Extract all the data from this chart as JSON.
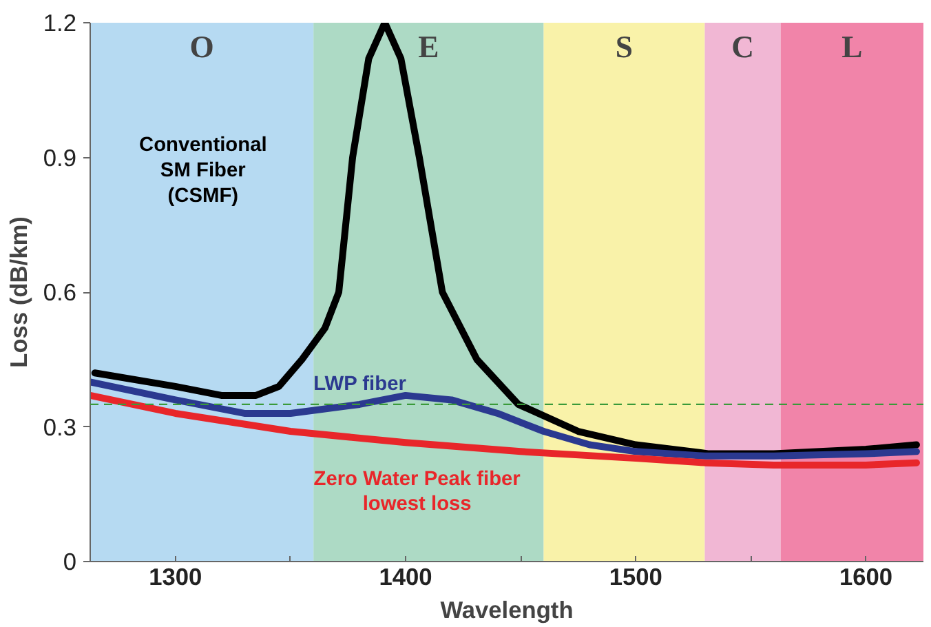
{
  "chart_data": {
    "type": "line",
    "xlabel": "Wavelength",
    "ylabel": "Loss (dB/km)",
    "xlim": [
      1263,
      1625
    ],
    "ylim": [
      0,
      1.2
    ],
    "xticks": [
      1300,
      {
        "value": 1350,
        "label": null
      },
      1400,
      {
        "value": 1450,
        "label": null
      },
      1500,
      {
        "value": 1550,
        "label": null
      },
      1600
    ],
    "yticks": [
      0,
      0.3,
      0.6,
      0.9,
      1.2
    ],
    "grid": false,
    "marker": "none",
    "line_style": "solid",
    "bands": [
      {
        "axis": "x",
        "from": 1263,
        "to": 1360,
        "label": "O",
        "color": "#a9d3f0"
      },
      {
        "axis": "x",
        "from": 1360,
        "to": 1460,
        "label": "E",
        "color": "#9fd4bb"
      },
      {
        "axis": "x",
        "from": 1460,
        "to": 1530,
        "label": "S",
        "color": "#f8f09a"
      },
      {
        "axis": "x",
        "from": 1530,
        "to": 1563,
        "label": "C",
        "color": "#eeaacc"
      },
      {
        "axis": "x",
        "from": 1563,
        "to": 1625,
        "label": "L",
        "color": "#ee6f9a"
      }
    ],
    "ref_lines": [
      {
        "axis": "y",
        "value": 0.35,
        "label": null,
        "color": "#3a9a3a",
        "line_style": "dashed"
      }
    ],
    "series": [
      {
        "name": "Conventional\nSM Fiber\n(CSMF)",
        "color": "#000000",
        "x": [
          1265,
          1300,
          1320,
          1335,
          1345,
          1355,
          1365,
          1371,
          1377,
          1384,
          1391,
          1398,
          1406,
          1416,
          1431,
          1449,
          1475,
          1500,
          1532,
          1560,
          1600,
          1622
        ],
        "values": [
          0.42,
          0.39,
          0.37,
          0.37,
          0.39,
          0.45,
          0.52,
          0.6,
          0.9,
          1.12,
          1.2,
          1.12,
          0.9,
          0.6,
          0.45,
          0.35,
          0.29,
          0.26,
          0.24,
          0.24,
          0.25,
          0.26
        ]
      },
      {
        "name": "LWP fiber",
        "color": "#2b3990",
        "x": [
          1263,
          1300,
          1330,
          1350,
          1380,
          1400,
          1420,
          1440,
          1460,
          1480,
          1500,
          1530,
          1560,
          1600,
          1622
        ],
        "values": [
          0.4,
          0.36,
          0.33,
          0.33,
          0.35,
          0.37,
          0.36,
          0.33,
          0.29,
          0.26,
          0.245,
          0.235,
          0.235,
          0.24,
          0.245
        ]
      },
      {
        "name": "Zero Water Peak fiber\nlowest loss",
        "color": "#e8262a",
        "x": [
          1263,
          1300,
          1350,
          1400,
          1450,
          1500,
          1530,
          1560,
          1600,
          1622
        ],
        "values": [
          0.37,
          0.33,
          0.29,
          0.265,
          0.245,
          0.23,
          0.22,
          0.215,
          0.215,
          0.22
        ]
      }
    ]
  }
}
